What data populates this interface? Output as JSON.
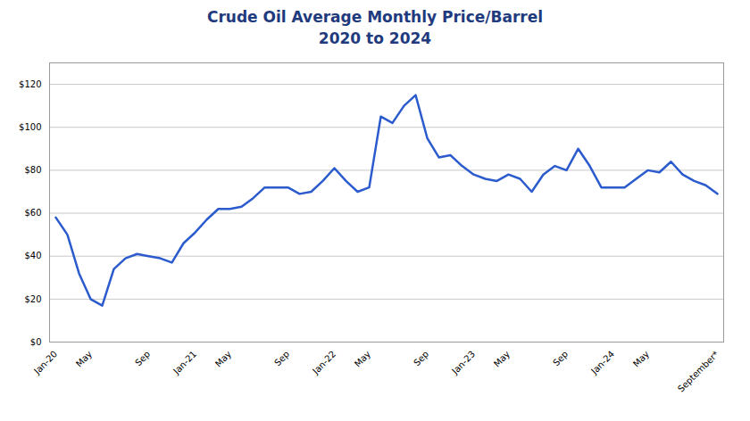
{
  "chart_data": {
    "type": "line",
    "title": "Crude Oil Average Monthly Price/Barrel",
    "subtitle": "2020 to 2024",
    "categories": [
      "Jan-20",
      null,
      null,
      "May",
      null,
      null,
      null,
      null,
      "Sep",
      null,
      null,
      null,
      "Jan-21",
      null,
      null,
      "May",
      null,
      null,
      null,
      null,
      "Sep",
      null,
      null,
      null,
      "Jan-22",
      null,
      null,
      "May",
      null,
      null,
      null,
      null,
      "Sep",
      null,
      null,
      null,
      "Jan-23",
      null,
      null,
      "May",
      null,
      null,
      null,
      null,
      "Sep",
      null,
      null,
      null,
      "Jan-24",
      null,
      null,
      "May",
      null,
      null,
      null,
      null,
      null,
      "September*"
    ],
    "values": [
      58,
      50,
      32,
      20,
      17,
      34,
      39,
      41,
      40,
      39,
      37,
      46,
      51,
      57,
      62,
      62,
      63,
      67,
      72,
      72,
      72,
      69,
      70,
      75,
      81,
      75,
      70,
      72,
      105,
      102,
      110,
      115,
      95,
      86,
      87,
      82,
      78,
      76,
      75,
      78,
      76,
      70,
      78,
      82,
      80,
      90,
      82,
      72,
      72,
      72,
      76,
      80,
      79,
      84,
      78,
      75,
      73,
      69
    ],
    "color": "#2B5BCC",
    "ylim": [
      0,
      130
    ],
    "yticks": [
      {
        "value": 0,
        "label": "$0"
      },
      {
        "value": 20,
        "label": "$20"
      },
      {
        "value": 40,
        "label": "$40"
      },
      {
        "value": 60,
        "label": "$60"
      },
      {
        "value": 80,
        "label": "$80"
      },
      {
        "value": 100,
        "label": "$100"
      },
      {
        "value": 120,
        "label": "$120"
      }
    ],
    "grid": true
  }
}
